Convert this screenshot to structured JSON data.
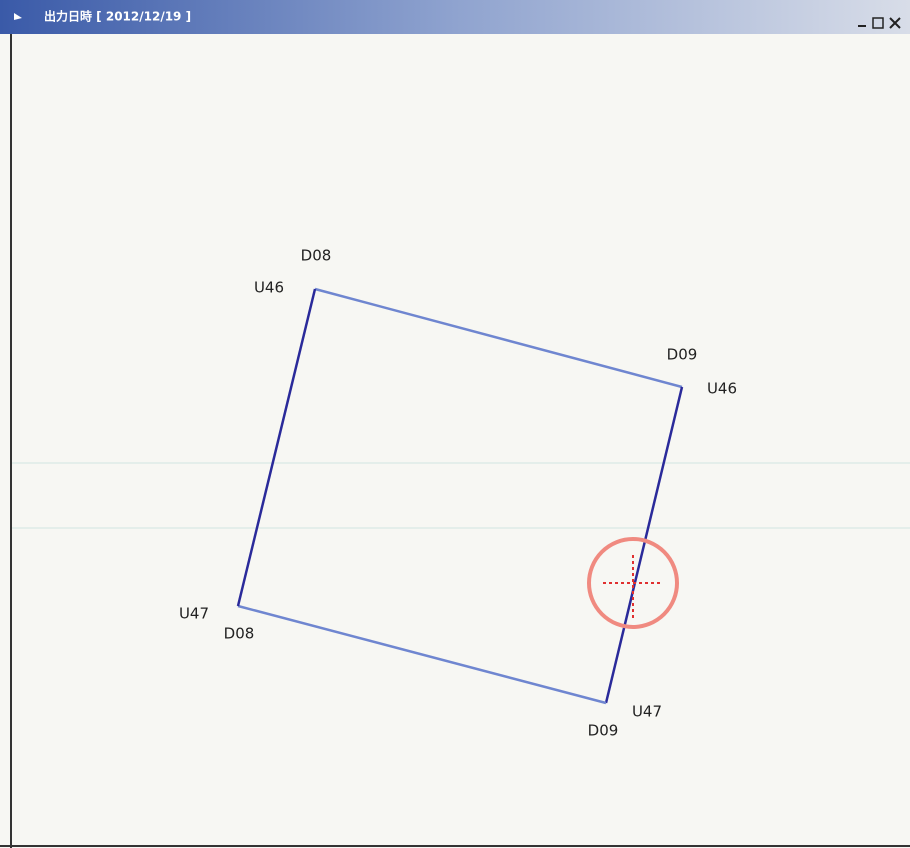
{
  "window": {
    "title": "出力日時 [ 2012/12/19 ]"
  },
  "corners": [
    {
      "labels": [
        "D08",
        "U46"
      ]
    },
    {
      "labels": [
        "D09",
        "U46"
      ]
    },
    {
      "labels": [
        "U47",
        "D09"
      ]
    },
    {
      "labels": [
        "U47",
        "D08"
      ]
    }
  ]
}
